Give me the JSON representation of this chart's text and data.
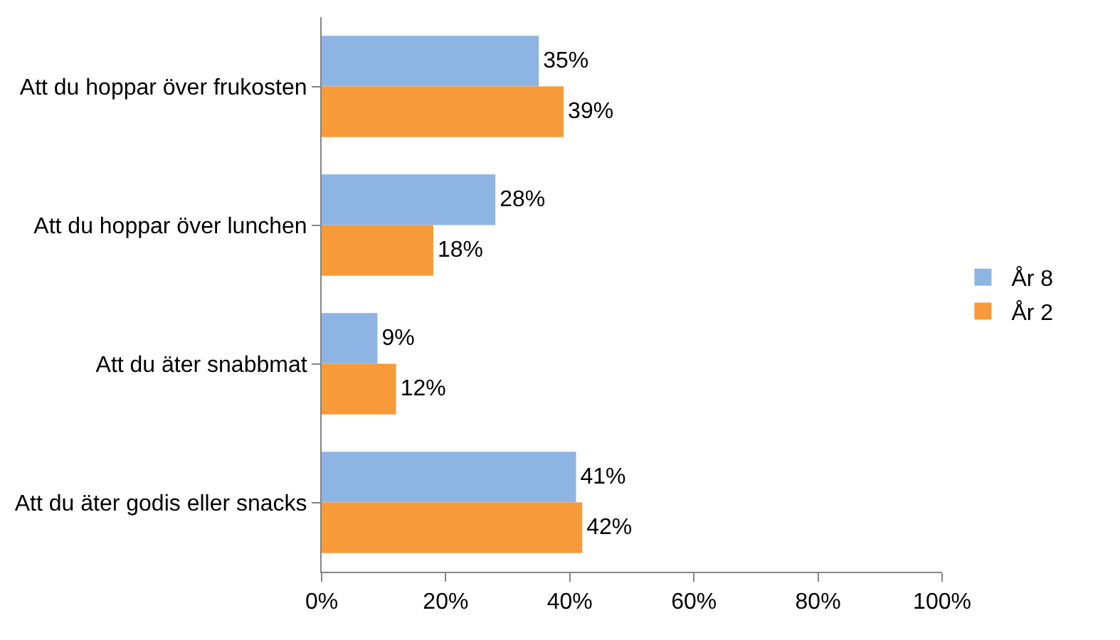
{
  "chart_data": {
    "type": "bar",
    "orientation": "horizontal",
    "categories": [
      "Att du hoppar över frukosten",
      "Att du hoppar över lunchen",
      "Att du äter snabbmat",
      "Att du äter godis eller snacks"
    ],
    "series": [
      {
        "name": "År 8",
        "color": "#8eb4e3",
        "values": [
          35,
          28,
          9,
          41
        ],
        "value_labels": [
          "35%",
          "28%",
          "9%",
          "41%"
        ]
      },
      {
        "name": "År 2",
        "color": "#f79a3a",
        "values": [
          39,
          18,
          12,
          42
        ],
        "value_labels": [
          "39%",
          "18%",
          "12%",
          "42%"
        ]
      }
    ],
    "xlim": [
      0,
      100
    ],
    "xticks": [
      {
        "value": 0,
        "label": "0%"
      },
      {
        "value": 20,
        "label": "20%"
      },
      {
        "value": 40,
        "label": "40%"
      },
      {
        "value": 60,
        "label": "60%"
      },
      {
        "value": 80,
        "label": "80%"
      },
      {
        "value": 100,
        "label": "100%"
      }
    ],
    "legend": "right"
  }
}
